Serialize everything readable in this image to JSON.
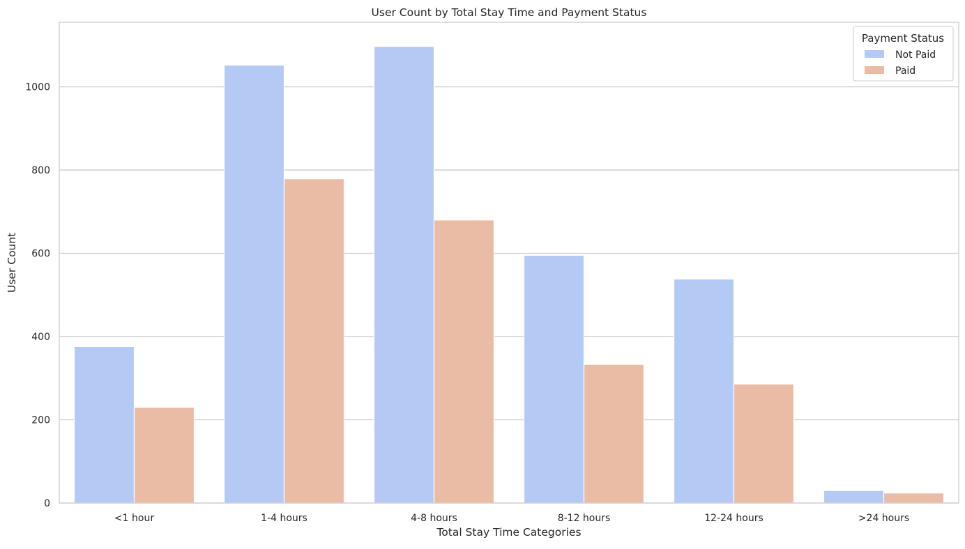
{
  "chart_data": {
    "type": "bar",
    "title": "User Count by Total Stay Time and Payment Status",
    "xlabel": "Total Stay Time Categories",
    "ylabel": "User Count",
    "categories": [
      "<1 hour",
      "1-4 hours",
      "4-8 hours",
      "8-12 hours",
      "12-24 hours",
      ">24 hours"
    ],
    "series": [
      {
        "name": "Not Paid",
        "color": "#b5c9f5",
        "values": [
          376,
          1052,
          1097,
          595,
          538,
          30
        ]
      },
      {
        "name": "Paid",
        "color": "#ebbca5",
        "values": [
          230,
          779,
          680,
          333,
          286,
          24
        ]
      }
    ],
    "ylim": [
      0,
      1155
    ],
    "yticks": [
      0,
      200,
      400,
      600,
      800,
      1000
    ],
    "grid": true,
    "legend": {
      "title": "Payment Status",
      "placement": "top-right"
    }
  }
}
